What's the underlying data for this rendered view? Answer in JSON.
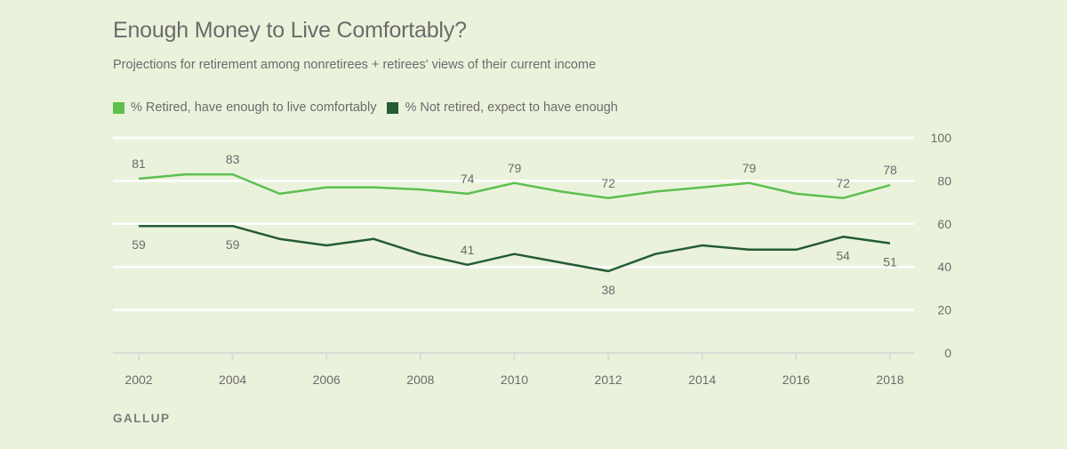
{
  "header": {
    "title": "Enough Money to Live Comfortably?",
    "subtitle": "Projections for retirement among nonretirees + retirees' views of their current income"
  },
  "footer": {
    "source": "GALLUP"
  },
  "colors": {
    "background": "#ebf2dc",
    "retired": "#5cbf4f",
    "not_retired": "#245c34",
    "grid": "#ffffff",
    "axis": "#d9dcd6",
    "text": "#6b6b6b"
  },
  "chart_data": {
    "type": "line",
    "title": "Enough Money to Live Comfortably?",
    "subtitle": "Projections for retirement among nonretirees + retirees' views of their current income",
    "xlabel": "",
    "ylabel": "",
    "x": [
      2002,
      2003,
      2004,
      2005,
      2006,
      2007,
      2008,
      2009,
      2010,
      2011,
      2012,
      2013,
      2014,
      2015,
      2016,
      2017,
      2018
    ],
    "xticks": [
      "2002",
      "2004",
      "2006",
      "2008",
      "2010",
      "2012",
      "2014",
      "2016",
      "2018"
    ],
    "xlim": [
      2002,
      2018
    ],
    "ylim": [
      0,
      100
    ],
    "yticks": [
      "0",
      "20",
      "40",
      "60",
      "80",
      "100"
    ],
    "y_axis_side": "right",
    "grid": true,
    "legend_position": "top-left",
    "series": [
      {
        "name": "% Retired, have enough to live comfortably",
        "color": "#5cbf4f",
        "values": [
          81,
          83,
          83,
          74,
          77,
          77,
          76,
          74,
          79,
          75,
          72,
          75,
          77,
          79,
          74,
          72,
          78
        ],
        "labeled": {
          "2002": "81",
          "2004": "83",
          "2009": "74",
          "2010": "79",
          "2012": "72",
          "2015": "79",
          "2017": "72",
          "2018": "78"
        },
        "label_position": "above"
      },
      {
        "name": "% Not retired, expect to have enough",
        "color": "#245c34",
        "values": [
          59,
          59,
          59,
          53,
          50,
          53,
          46,
          41,
          46,
          42,
          38,
          46,
          50,
          48,
          48,
          54,
          51
        ],
        "labeled": {
          "2002": "59",
          "2004": "59",
          "2009": "41",
          "2012": "38",
          "2017": "54",
          "2018": "51"
        },
        "label_position": {
          "2002": "below",
          "2004": "below",
          "2009": "above",
          "2012": "below",
          "2017": "below",
          "2018": "below"
        }
      }
    ]
  }
}
